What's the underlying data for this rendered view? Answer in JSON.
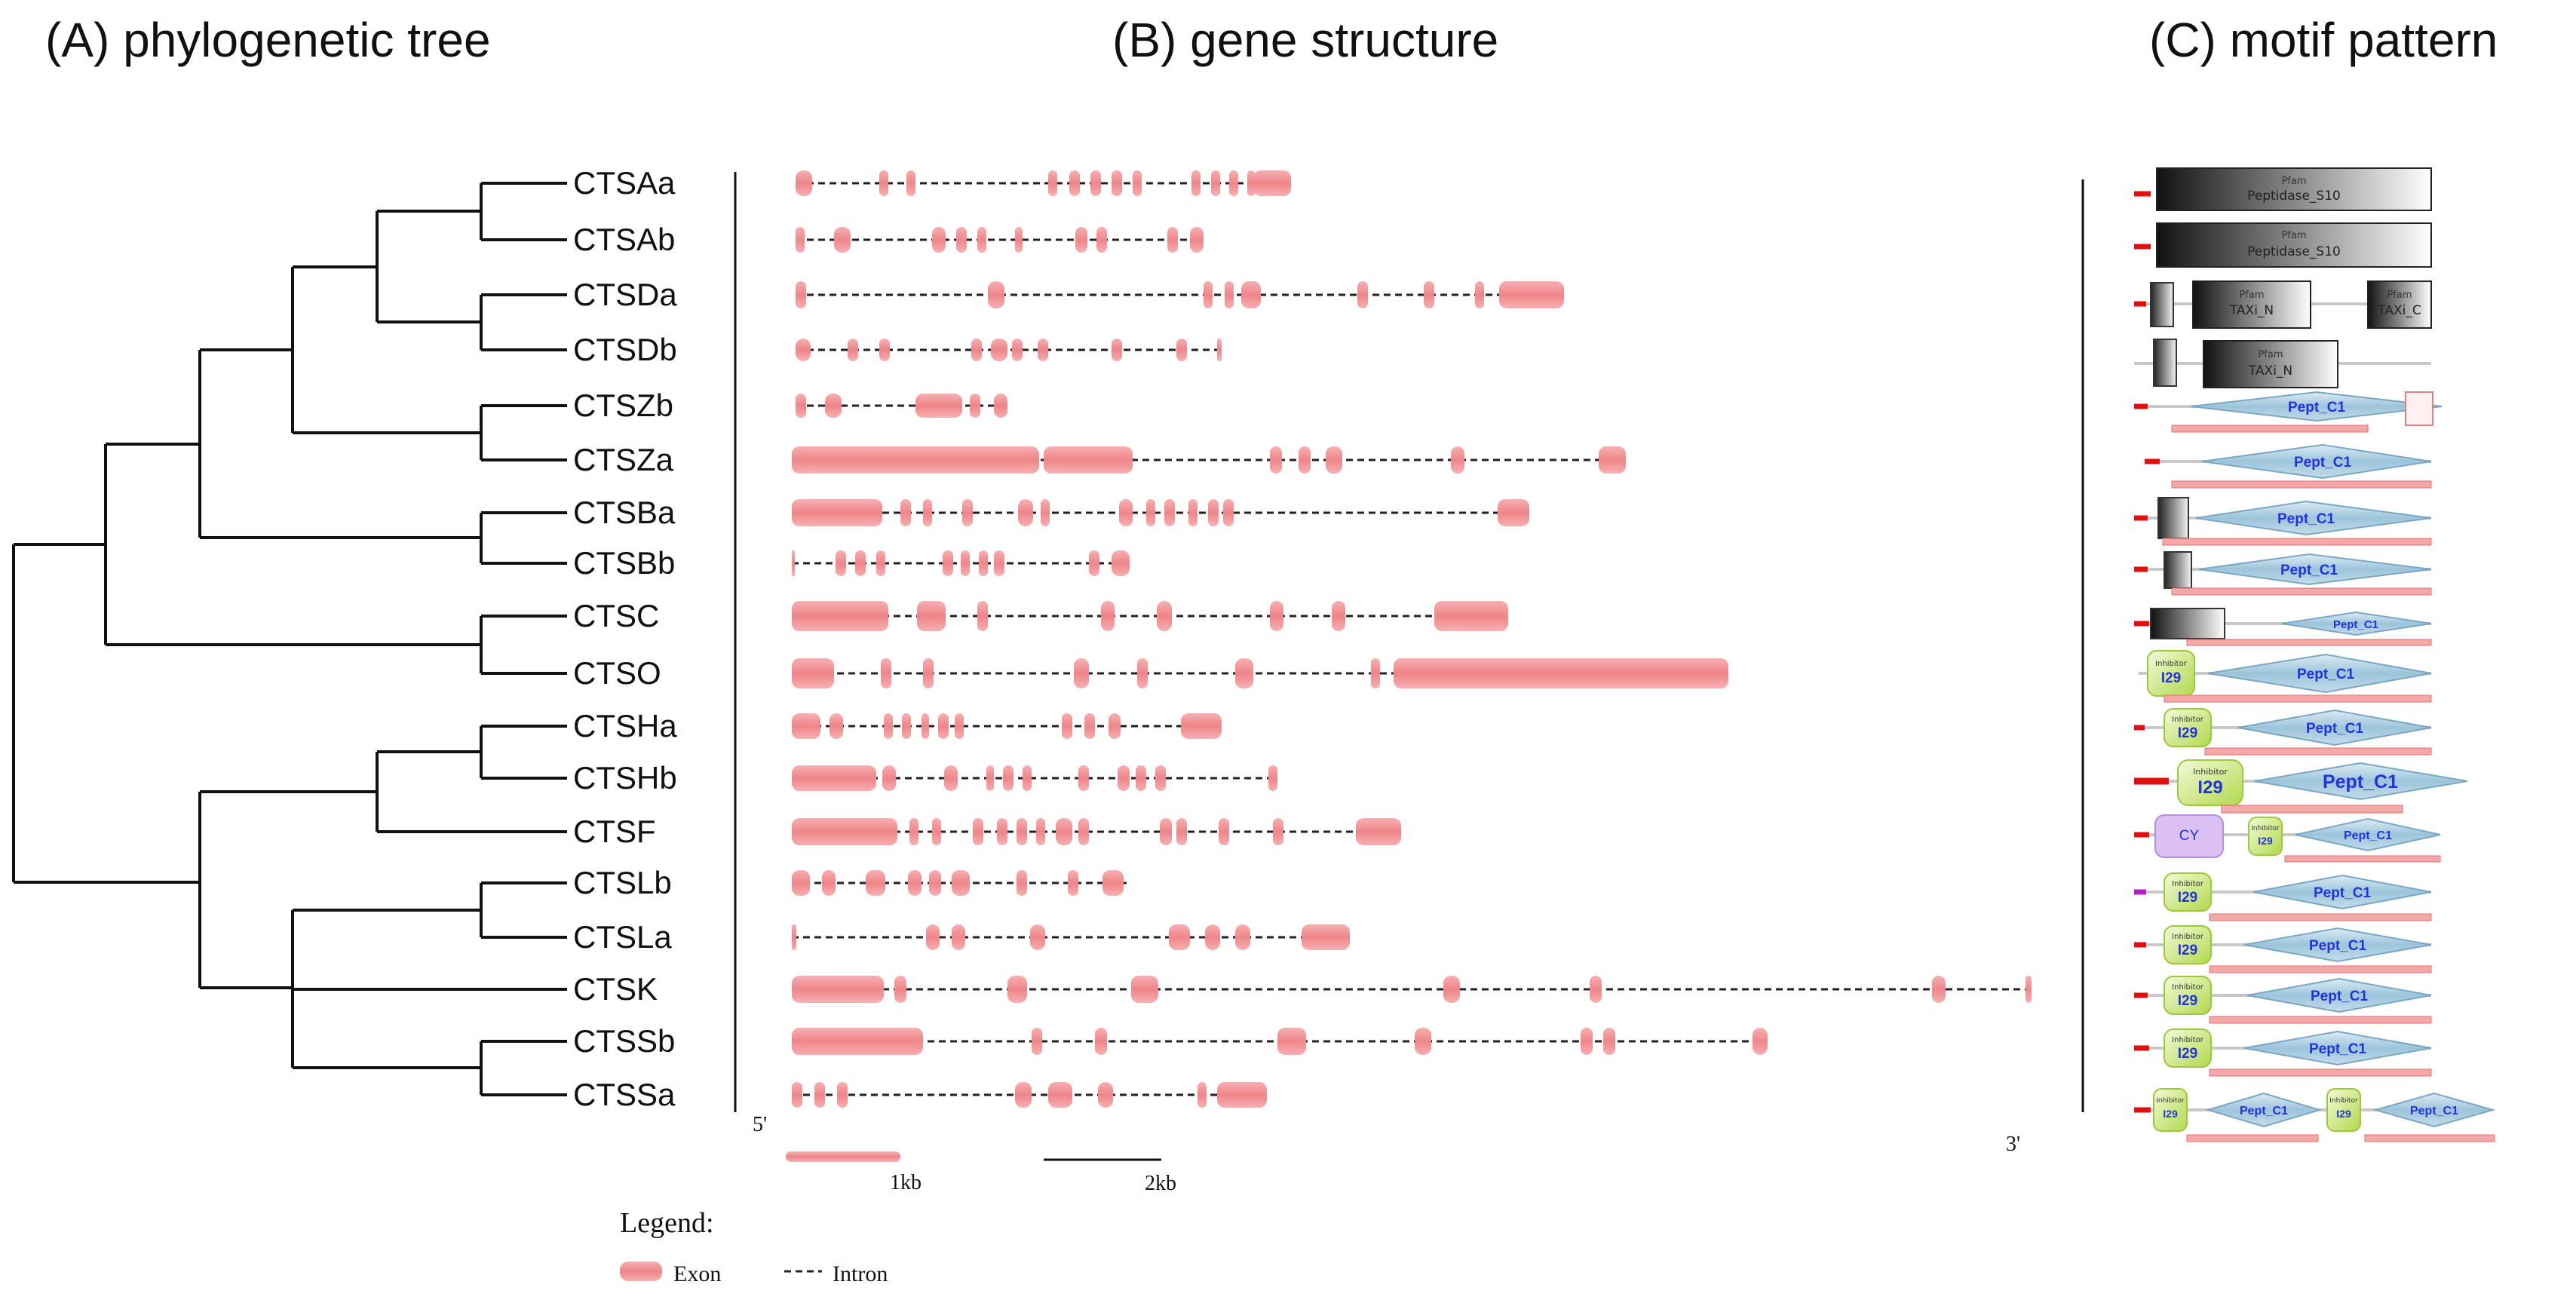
{
  "titles": {
    "a": "(A) phylogenetic tree",
    "b": "(B) gene structure",
    "c": "(C) motif pattern"
  },
  "genes": [
    "CTSAa",
    "CTSAb",
    "CTSDa",
    "CTSDb",
    "CTSZb",
    "CTSZa",
    "CTSBa",
    "CTSBb",
    "CTSC",
    "CTSO",
    "CTSHa",
    "CTSHb",
    "CTSF",
    "CTSLb",
    "CTSLa",
    "CTSK",
    "CTSSb",
    "CTSSa"
  ],
  "end_labels": {
    "five_prime": "5'",
    "three_prime": "3'"
  },
  "scale": {
    "one": "1kb",
    "two": "2kb"
  },
  "legend": {
    "title": "Legend:",
    "exon": "Exon",
    "intron": "Intron"
  },
  "domain_names": {
    "pfam": "Pfam",
    "peptidase_s10": "Peptidase_S10",
    "taxi_n": "TAXi_N",
    "taxi_c": "TAXi_C",
    "pept_c1": "Pept_C1",
    "inhibitor": "Inhibitor",
    "i29": "I29",
    "cy": "CY"
  },
  "colors": {
    "exon": "#f0888c",
    "intron": "#222222",
    "tree": "#111111",
    "signal": "#e01010",
    "pept": "#a8cde0",
    "i29": "#c8e870",
    "cy": "#d8b8f0",
    "lowcomp": "#f4a8a8"
  },
  "icons": {
    "exon_swatch": "exon-swatch-icon",
    "intron_swatch": "intron-swatch-icon"
  }
}
